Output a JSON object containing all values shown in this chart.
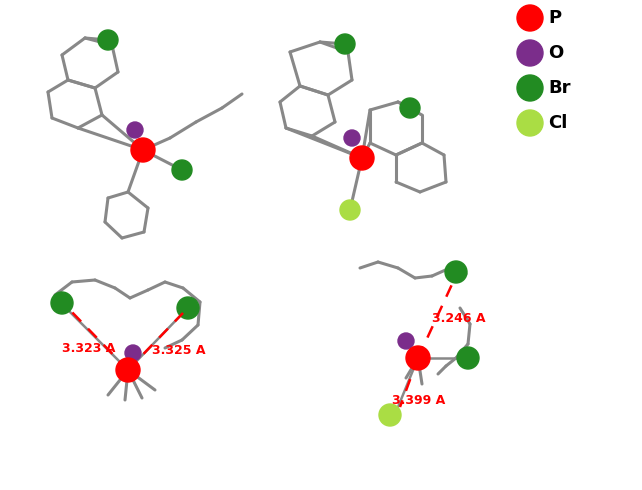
{
  "background": "#ffffff",
  "legend": {
    "items": [
      {
        "label": "P",
        "color": "#ff0000"
      },
      {
        "label": "O",
        "color": "#7b2d8b"
      },
      {
        "label": "Br",
        "color": "#228B22"
      },
      {
        "label": "Cl",
        "color": "#aadd44"
      }
    ]
  },
  "gray": "#888888",
  "red": "#ff0000",
  "bond_lw": 2.2,
  "atom_r": {
    "P": 12,
    "O": 8,
    "Br": 10,
    "Cl": 10
  }
}
